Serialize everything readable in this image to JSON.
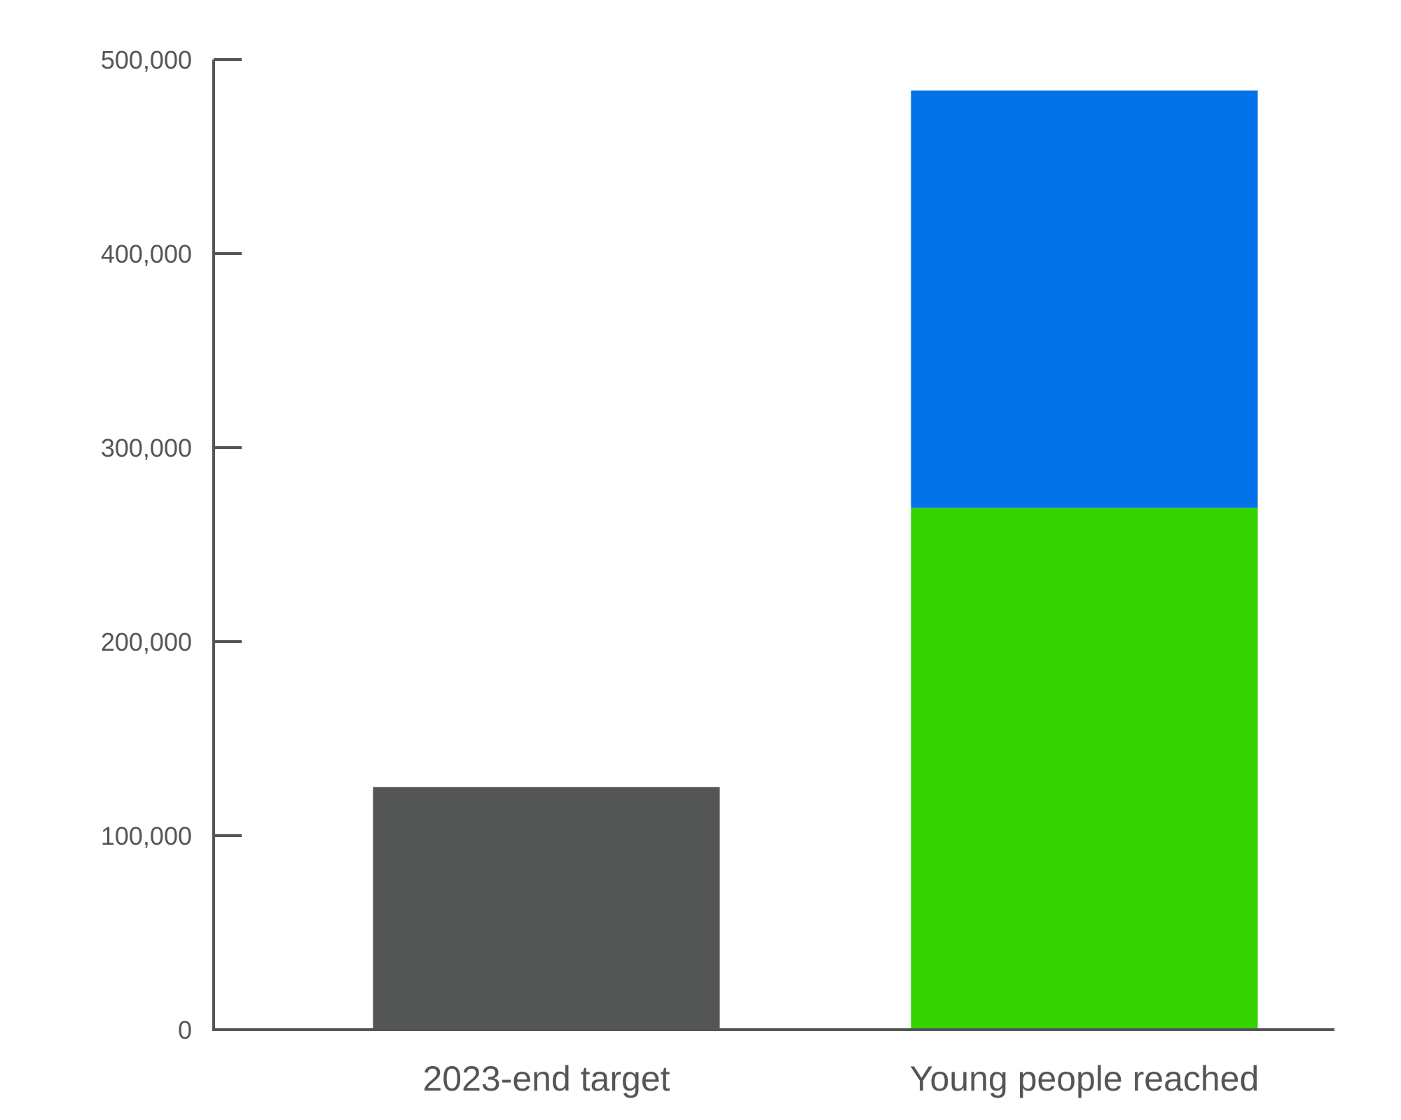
{
  "chart_data": {
    "type": "bar",
    "stacked": true,
    "title": "",
    "xlabel": "",
    "ylabel": "",
    "ylim": [
      0,
      500000
    ],
    "yticks": [
      0,
      100000,
      200000,
      300000,
      400000,
      500000
    ],
    "ytick_labels": [
      "0",
      "100,000",
      "200,000",
      "300,000",
      "400,000",
      "500,000"
    ],
    "grid": false,
    "legend": "none",
    "categories": [
      "2023-end target",
      "Young people reached"
    ],
    "series": [
      {
        "values": [
          125000,
          269000
        ],
        "colors": [
          "#545655",
          "#36D200"
        ]
      },
      {
        "values": [
          0,
          215000
        ],
        "colors": [
          "#545655",
          "#0473EA"
        ]
      }
    ],
    "axis_color": "#545656"
  }
}
